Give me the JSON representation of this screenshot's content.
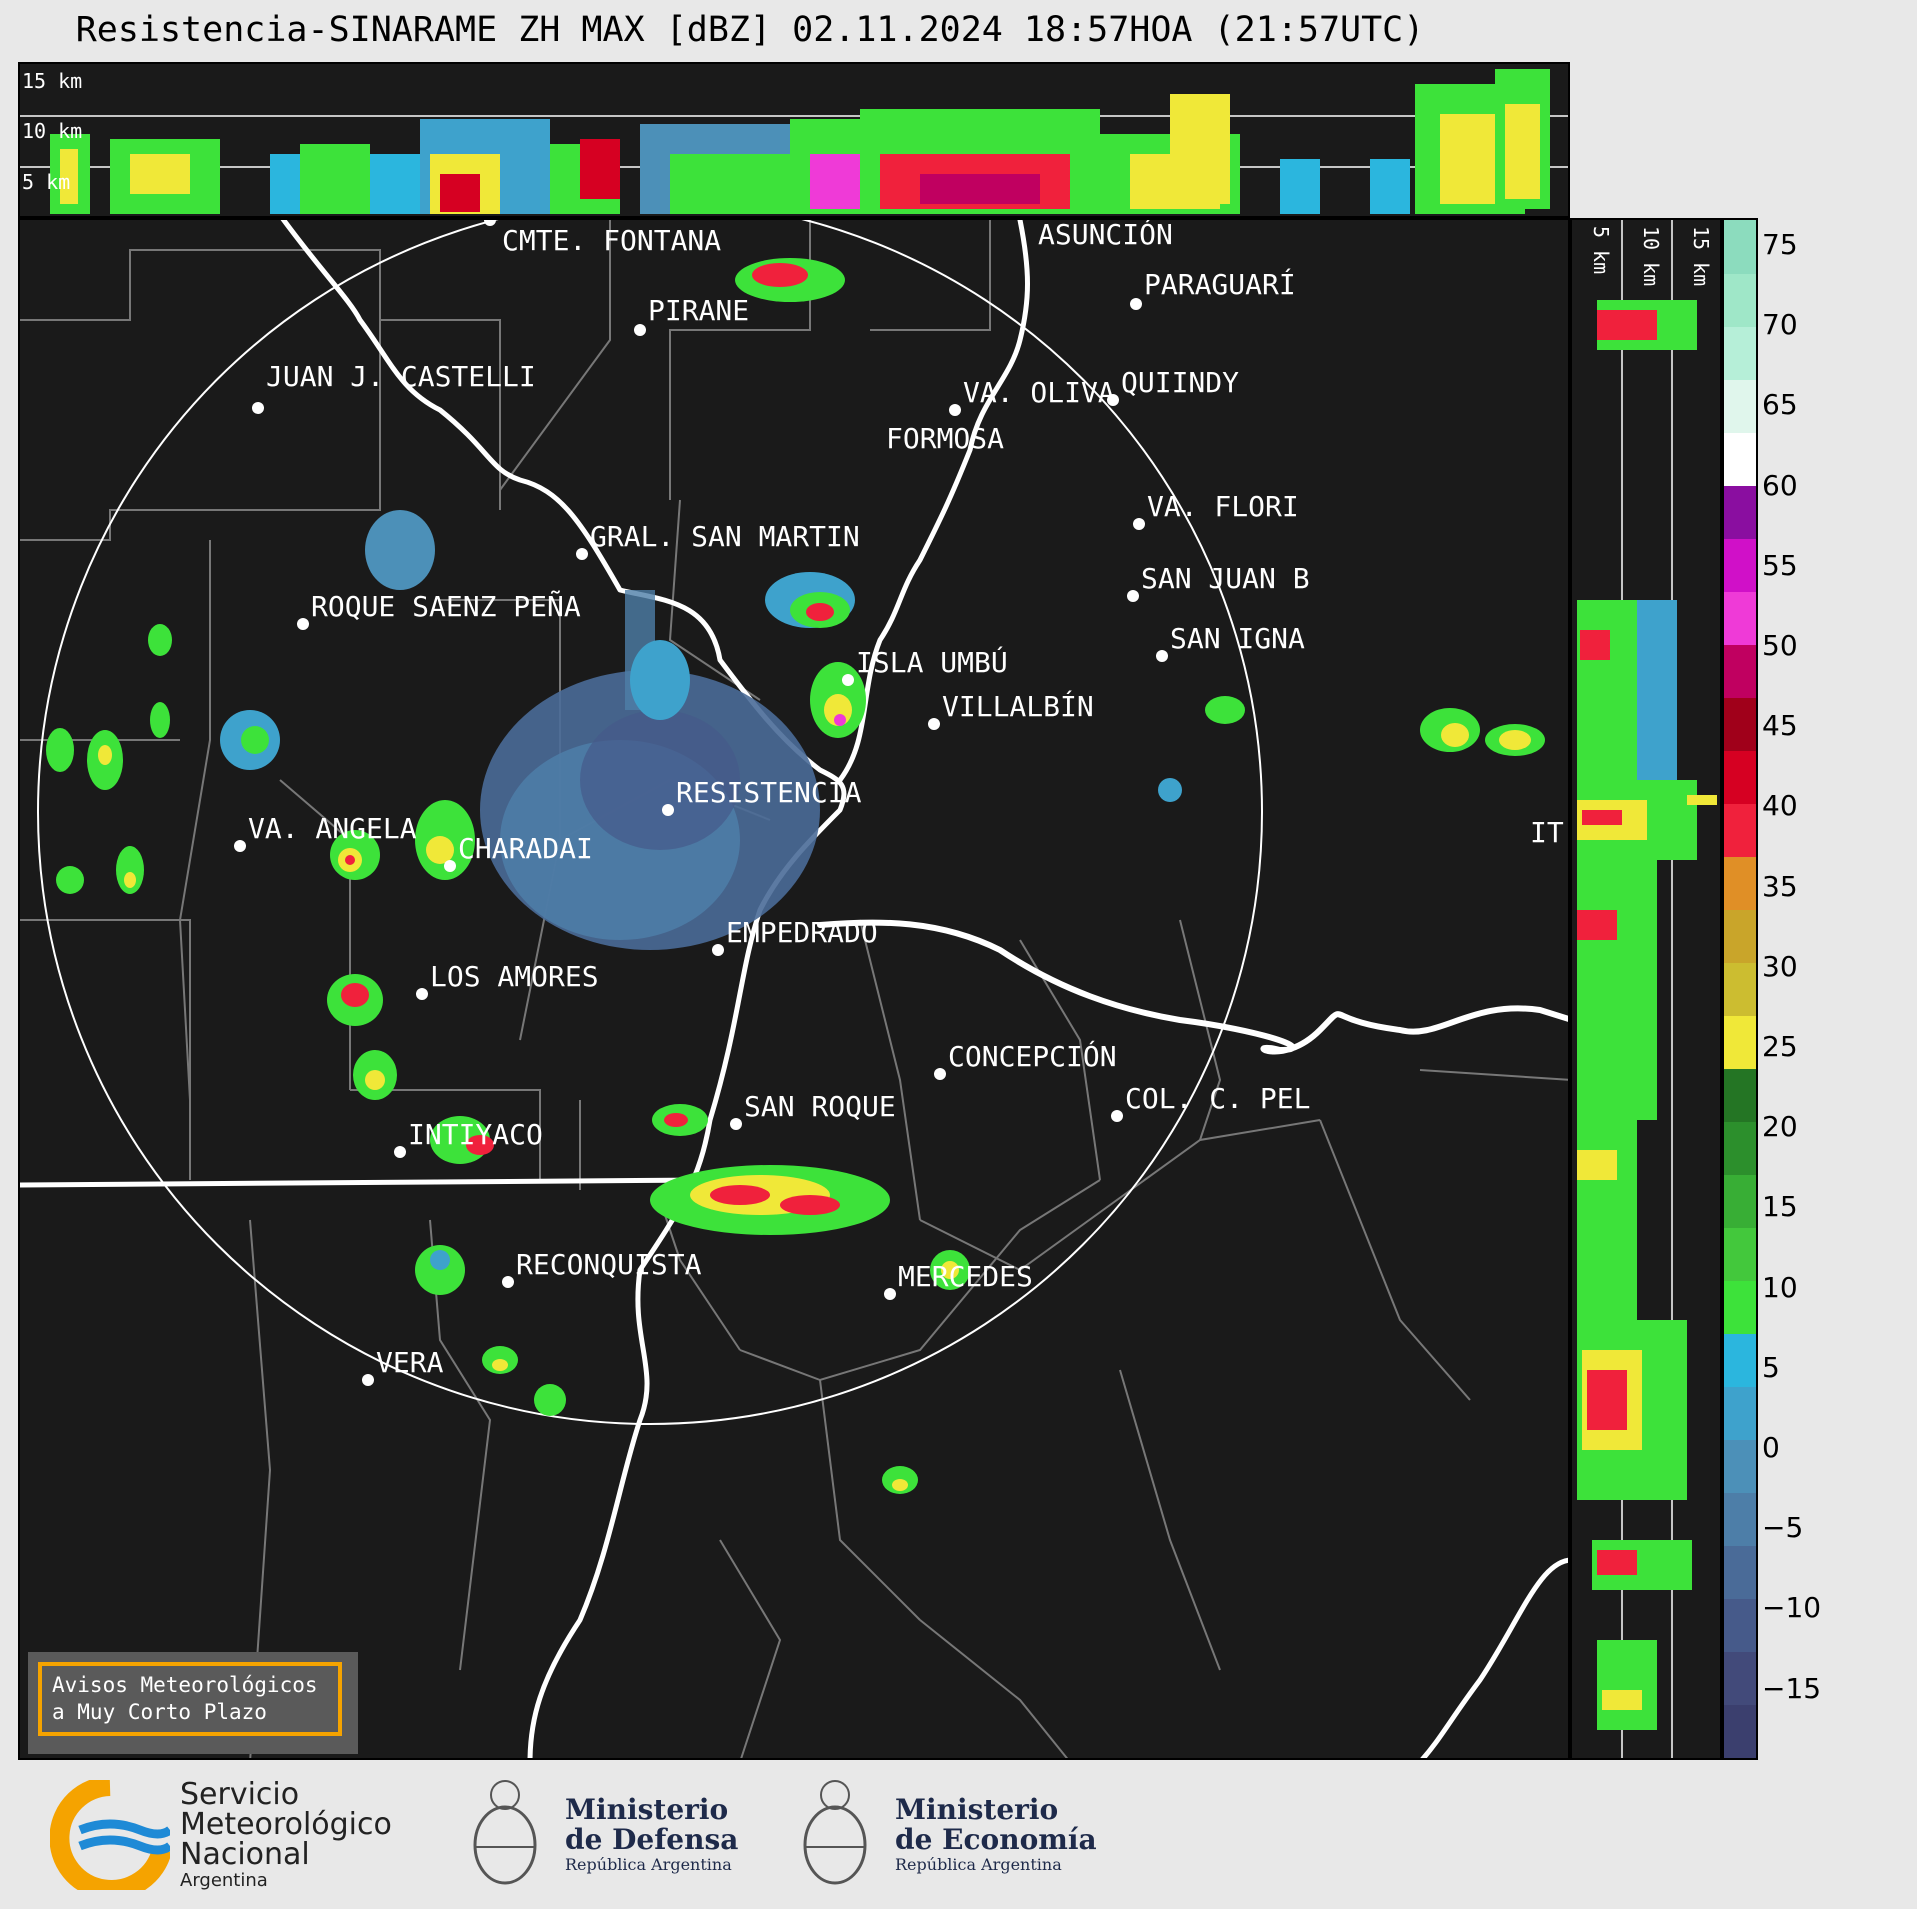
{
  "title": "Resistencia-SINARAME ZH MAX [dBZ] 02.11.2024 18:57HOA (21:57UTC)",
  "top_panel": {
    "height_labels": [
      "15 km",
      "10 km",
      "5 km"
    ]
  },
  "side_panel": {
    "height_labels": [
      "5 km",
      "10 km",
      "15 km"
    ]
  },
  "colorbar": {
    "ticks": [
      "75",
      "70",
      "65",
      "60",
      "55",
      "50",
      "45",
      "40",
      "35",
      "30",
      "25",
      "20",
      "15",
      "10",
      "5",
      "0",
      "−5",
      "−10",
      "−15"
    ],
    "colors": [
      "#3b3f6e",
      "#424a7a",
      "#465a8a",
      "#4a6b98",
      "#4d7ea8",
      "#4c90b8",
      "#3ea2cc",
      "#2bb6de",
      "#3de23a",
      "#43c83c",
      "#38ae35",
      "#2c8f2c",
      "#247524",
      "#f0e838",
      "#ccbd30",
      "#c9a52a",
      "#e08f26",
      "#f0213c",
      "#d60022",
      "#a0001a",
      "#c00060",
      "#ef3ad7",
      "#d010c8",
      "#8a0ea0",
      "#ffffff",
      "#e0f6ec",
      "#b6efd8",
      "#9fe7c8",
      "#8cdcbe"
    ]
  },
  "places": [
    {
      "name": "CMTE. FONTANA"
    },
    {
      "name": "ASUNCIÓN"
    },
    {
      "name": "PARAGUARÍ"
    },
    {
      "name": "PIRANE"
    },
    {
      "name": "JUAN J. CASTELLI"
    },
    {
      "name": "VA. OLIVA"
    },
    {
      "name": "QUIINDY"
    },
    {
      "name": "FORMOSA"
    },
    {
      "name": "VA. FLORI"
    },
    {
      "name": "GRAL. SAN MARTIN"
    },
    {
      "name": "SAN JUAN B"
    },
    {
      "name": "ROQUE SAENZ PEÑA"
    },
    {
      "name": "SAN IGNA"
    },
    {
      "name": "ISLA UMBÚ"
    },
    {
      "name": "VILLALBÍN"
    },
    {
      "name": "RESISTENCIA"
    },
    {
      "name": "IT"
    },
    {
      "name": "VA. ANGELA"
    },
    {
      "name": "CHARADAI"
    },
    {
      "name": "EMPEDRADO"
    },
    {
      "name": "LOS AMORES"
    },
    {
      "name": "CONCEPCIÓN"
    },
    {
      "name": "SAN ROQUE"
    },
    {
      "name": "COL. C. PEL"
    },
    {
      "name": "INTIYACO"
    },
    {
      "name": "RECONQUISTA"
    },
    {
      "name": "MERCEDES"
    },
    {
      "name": "VERA"
    }
  ],
  "notice": {
    "line1": "Avisos Meteorológicos",
    "line2": "a Muy Corto Plazo"
  },
  "logos": {
    "smn": {
      "line1": "Servicio",
      "line2": "Meteorológico",
      "line3": "Nacional",
      "line4": "Argentina"
    },
    "defensa": {
      "line1": "Ministerio",
      "line2": "de Defensa",
      "line3": "República Argentina"
    },
    "economia": {
      "line1": "Ministerio",
      "line2": "de Economía",
      "line3": "República Argentina"
    }
  },
  "accent_colors": {
    "smn_orange": "#f5a300",
    "smn_blue": "#1e8ad6",
    "ministry_navy": "#1e2a4a"
  }
}
